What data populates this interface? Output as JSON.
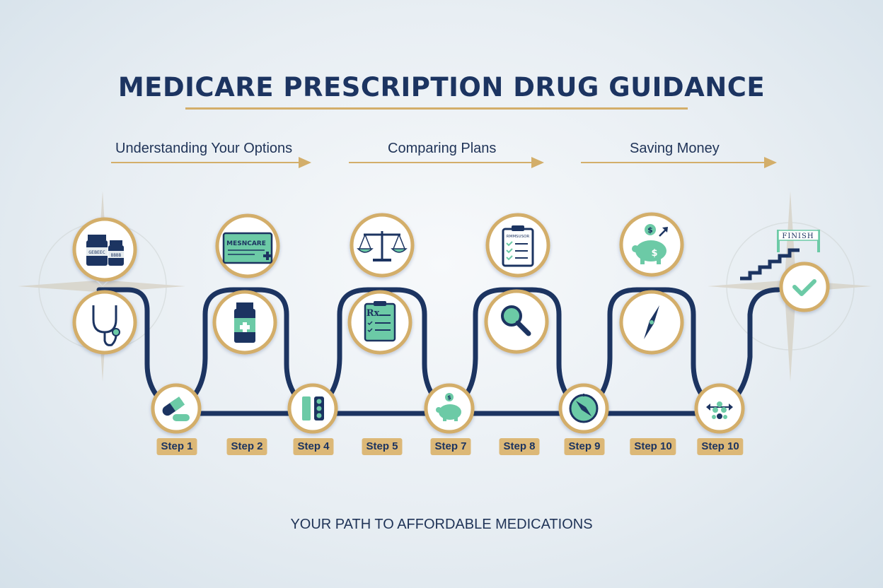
{
  "title": "MEDICARE PRESCRIPTION DRUG GUIDANCE",
  "phases": [
    "Understanding Your Options",
    "Comparing Plans",
    "Saving Money"
  ],
  "icon_texts": {
    "bottle_left": "GEBEEC",
    "bottle_right": "BBBB",
    "card": "MESNCARE",
    "clipboard": "RMMSUSOR",
    "rx": "Rx",
    "dollar": "$",
    "finish": "FINISH"
  },
  "steps": [
    "Step 1",
    "Step 2",
    "Step 4",
    "Step 5",
    "Step 7",
    "Step 8",
    "Step 9",
    "Step 10",
    "Step 10"
  ],
  "tagline": "YOUR PATH TO AFFORDABLE MEDICATIONS",
  "colors": {
    "navy": "#1c3461",
    "gold": "#d3ae6a",
    "teal": "#6ccaa6",
    "label_bg": "#dcb877"
  }
}
